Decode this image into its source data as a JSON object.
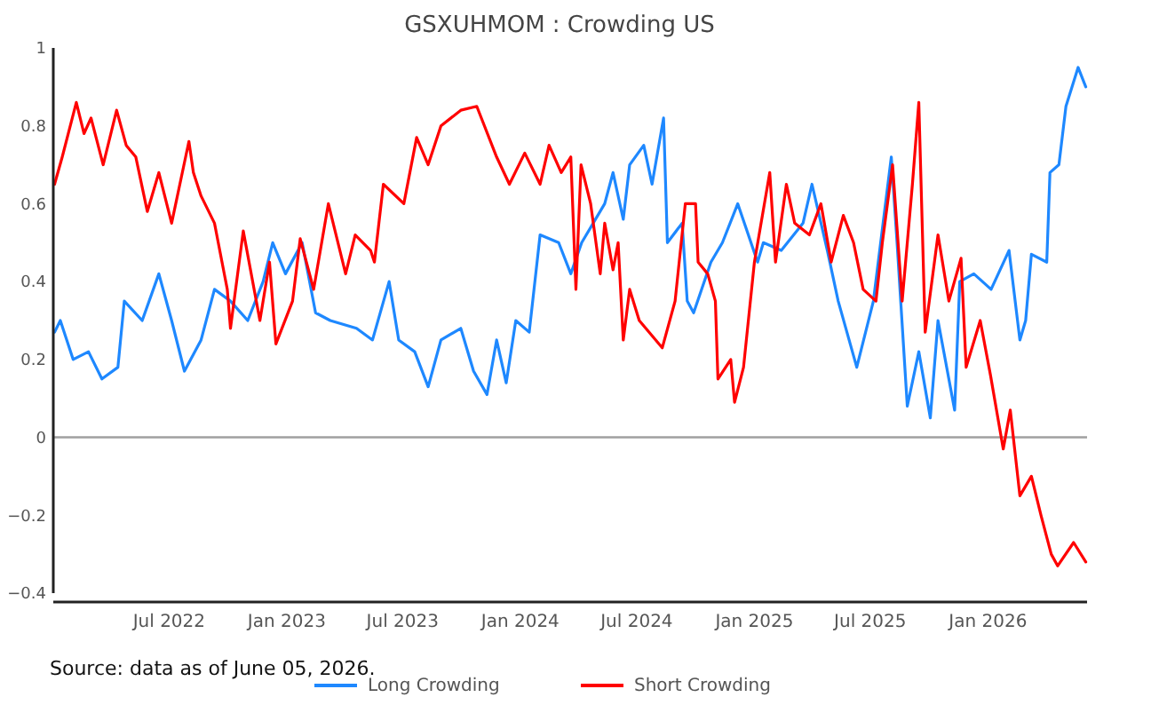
{
  "chart_data": {
    "type": "line",
    "title": "GSXUHMOM : Crowding US",
    "annotations": [
      "Source: data as of June 05, 2026."
    ],
    "xlim": [
      "2022-01-01",
      "2026-06-05"
    ],
    "xticks": [
      {
        "value": "2022-07-01",
        "label": "Jul 2022"
      },
      {
        "value": "2023-01-01",
        "label": "Jan 2023"
      },
      {
        "value": "2023-07-01",
        "label": "Jul 2023"
      },
      {
        "value": "2024-01-01",
        "label": "Jan 2024"
      },
      {
        "value": "2024-07-01",
        "label": "Jul 2024"
      },
      {
        "value": "2025-01-01",
        "label": "Jan 2025"
      },
      {
        "value": "2025-07-01",
        "label": "Jul 2025"
      },
      {
        "value": "2026-01-01",
        "label": "Jan 2026"
      }
    ],
    "ylim": [
      -0.4,
      1
    ],
    "yticks": [
      {
        "value": -0.4,
        "label": "−0.4"
      },
      {
        "value": -0.2,
        "label": "−0.2"
      },
      0,
      0.2,
      0.4,
      0.6,
      0.8,
      1
    ],
    "ref_lines": [
      {
        "axis": "y",
        "value": 0,
        "color": "#a0a0a0"
      }
    ],
    "grid": false,
    "legend": "bottom",
    "series": [
      {
        "name": "Long Crowding",
        "color": "#1e88ff",
        "x": [
          "2022-01-03",
          "2022-01-12",
          "2022-02-01",
          "2022-02-25",
          "2022-03-18",
          "2022-04-12",
          "2022-04-22",
          "2022-05-20",
          "2022-06-15",
          "2022-07-05",
          "2022-07-25",
          "2022-08-20",
          "2022-09-10",
          "2022-10-05",
          "2022-11-01",
          "2022-11-25",
          "2022-12-10",
          "2022-12-30",
          "2023-01-25",
          "2023-02-15",
          "2023-03-10",
          "2023-04-20",
          "2023-05-15",
          "2023-06-10",
          "2023-06-25",
          "2023-07-20",
          "2023-08-10",
          "2023-08-30",
          "2023-09-30",
          "2023-10-20",
          "2023-11-10",
          "2023-11-25",
          "2023-12-10",
          "2023-12-25",
          "2024-01-15",
          "2024-02-01",
          "2024-03-01",
          "2024-03-20",
          "2024-04-06",
          "2024-05-12",
          "2024-05-25",
          "2024-06-10",
          "2024-06-20",
          "2024-07-12",
          "2024-07-25",
          "2024-08-12",
          "2024-08-18",
          "2024-09-10",
          "2024-09-18",
          "2024-09-28",
          "2024-10-25",
          "2024-11-12",
          "2024-12-06",
          "2025-01-06",
          "2025-01-15",
          "2025-02-12",
          "2025-03-18",
          "2025-04-01",
          "2025-04-25",
          "2025-05-12",
          "2025-06-10",
          "2025-07-06",
          "2025-08-03",
          "2025-08-12",
          "2025-08-28",
          "2025-09-15",
          "2025-10-03",
          "2025-10-15",
          "2025-11-10",
          "2025-11-18",
          "2025-12-10",
          "2026-01-06",
          "2026-02-03",
          "2026-02-20",
          "2026-03-01",
          "2026-03-10",
          "2026-04-03",
          "2026-04-08",
          "2026-04-22",
          "2026-05-03",
          "2026-05-22",
          "2026-06-03"
        ],
        "values": [
          0.27,
          0.3,
          0.2,
          0.22,
          0.15,
          0.18,
          0.35,
          0.3,
          0.42,
          0.3,
          0.17,
          0.25,
          0.38,
          0.35,
          0.3,
          0.4,
          0.5,
          0.42,
          0.5,
          0.32,
          0.3,
          0.28,
          0.25,
          0.4,
          0.25,
          0.22,
          0.13,
          0.25,
          0.28,
          0.17,
          0.11,
          0.25,
          0.14,
          0.3,
          0.27,
          0.52,
          0.5,
          0.42,
          0.5,
          0.6,
          0.68,
          0.56,
          0.7,
          0.75,
          0.65,
          0.82,
          0.5,
          0.55,
          0.35,
          0.32,
          0.45,
          0.5,
          0.6,
          0.45,
          0.5,
          0.48,
          0.55,
          0.65,
          0.48,
          0.35,
          0.18,
          0.35,
          0.72,
          0.5,
          0.08,
          0.22,
          0.05,
          0.3,
          0.07,
          0.4,
          0.42,
          0.38,
          0.48,
          0.25,
          0.3,
          0.47,
          0.45,
          0.68,
          0.7,
          0.85,
          0.95,
          0.9
        ]
      },
      {
        "name": "Short Crowding",
        "color": "#ff0000",
        "x": [
          "2022-01-03",
          "2022-01-15",
          "2022-02-06",
          "2022-02-18",
          "2022-03-01",
          "2022-03-20",
          "2022-04-10",
          "2022-04-25",
          "2022-05-10",
          "2022-05-28",
          "2022-06-15",
          "2022-07-05",
          "2022-08-01",
          "2022-08-08",
          "2022-08-20",
          "2022-09-10",
          "2022-09-30",
          "2022-10-05",
          "2022-10-25",
          "2022-11-20",
          "2022-12-05",
          "2022-12-15",
          "2023-01-10",
          "2023-01-22",
          "2023-02-12",
          "2023-03-07",
          "2023-04-03",
          "2023-04-18",
          "2023-05-12",
          "2023-05-18",
          "2023-06-01",
          "2023-07-03",
          "2023-07-23",
          "2023-08-10",
          "2023-08-30",
          "2023-09-30",
          "2023-10-25",
          "2023-11-25",
          "2023-12-15",
          "2024-01-08",
          "2024-02-01",
          "2024-02-15",
          "2024-03-05",
          "2024-03-20",
          "2024-03-28",
          "2024-04-05",
          "2024-04-20",
          "2024-05-05",
          "2024-05-12",
          "2024-05-25",
          "2024-06-02",
          "2024-06-10",
          "2024-06-20",
          "2024-07-05",
          "2024-08-10",
          "2024-08-30",
          "2024-09-15",
          "2024-10-01",
          "2024-10-05",
          "2024-10-20",
          "2024-11-01",
          "2024-11-05",
          "2024-11-25",
          "2024-12-01",
          "2024-12-15",
          "2025-01-01",
          "2025-01-25",
          "2025-02-03",
          "2025-02-20",
          "2025-03-05",
          "2025-03-28",
          "2025-04-15",
          "2025-05-01",
          "2025-05-20",
          "2025-06-05",
          "2025-06-20",
          "2025-07-10",
          "2025-07-20",
          "2025-08-05",
          "2025-08-20",
          "2025-09-05",
          "2025-09-15",
          "2025-09-25",
          "2025-10-15",
          "2025-11-01",
          "2025-11-20",
          "2025-11-28",
          "2025-12-20",
          "2026-01-05",
          "2026-01-25",
          "2026-02-05",
          "2026-02-20",
          "2026-03-10",
          "2026-03-25",
          "2026-04-10",
          "2026-04-20",
          "2026-05-15",
          "2026-06-03"
        ],
        "values": [
          0.65,
          0.72,
          0.86,
          0.78,
          0.82,
          0.7,
          0.84,
          0.75,
          0.72,
          0.58,
          0.68,
          0.55,
          0.76,
          0.68,
          0.62,
          0.55,
          0.38,
          0.28,
          0.53,
          0.3,
          0.45,
          0.24,
          0.35,
          0.51,
          0.38,
          0.6,
          0.42,
          0.52,
          0.48,
          0.45,
          0.65,
          0.6,
          0.77,
          0.7,
          0.8,
          0.84,
          0.85,
          0.72,
          0.65,
          0.73,
          0.65,
          0.75,
          0.68,
          0.72,
          0.38,
          0.7,
          0.6,
          0.42,
          0.55,
          0.43,
          0.5,
          0.25,
          0.38,
          0.3,
          0.23,
          0.35,
          0.6,
          0.6,
          0.45,
          0.42,
          0.35,
          0.15,
          0.2,
          0.09,
          0.18,
          0.45,
          0.68,
          0.45,
          0.65,
          0.55,
          0.52,
          0.6,
          0.45,
          0.57,
          0.5,
          0.38,
          0.35,
          0.5,
          0.7,
          0.35,
          0.65,
          0.86,
          0.27,
          0.52,
          0.35,
          0.46,
          0.18,
          0.3,
          0.16,
          -0.03,
          0.07,
          -0.15,
          -0.1,
          -0.2,
          -0.3,
          -0.33,
          -0.27,
          -0.32
        ]
      }
    ]
  }
}
